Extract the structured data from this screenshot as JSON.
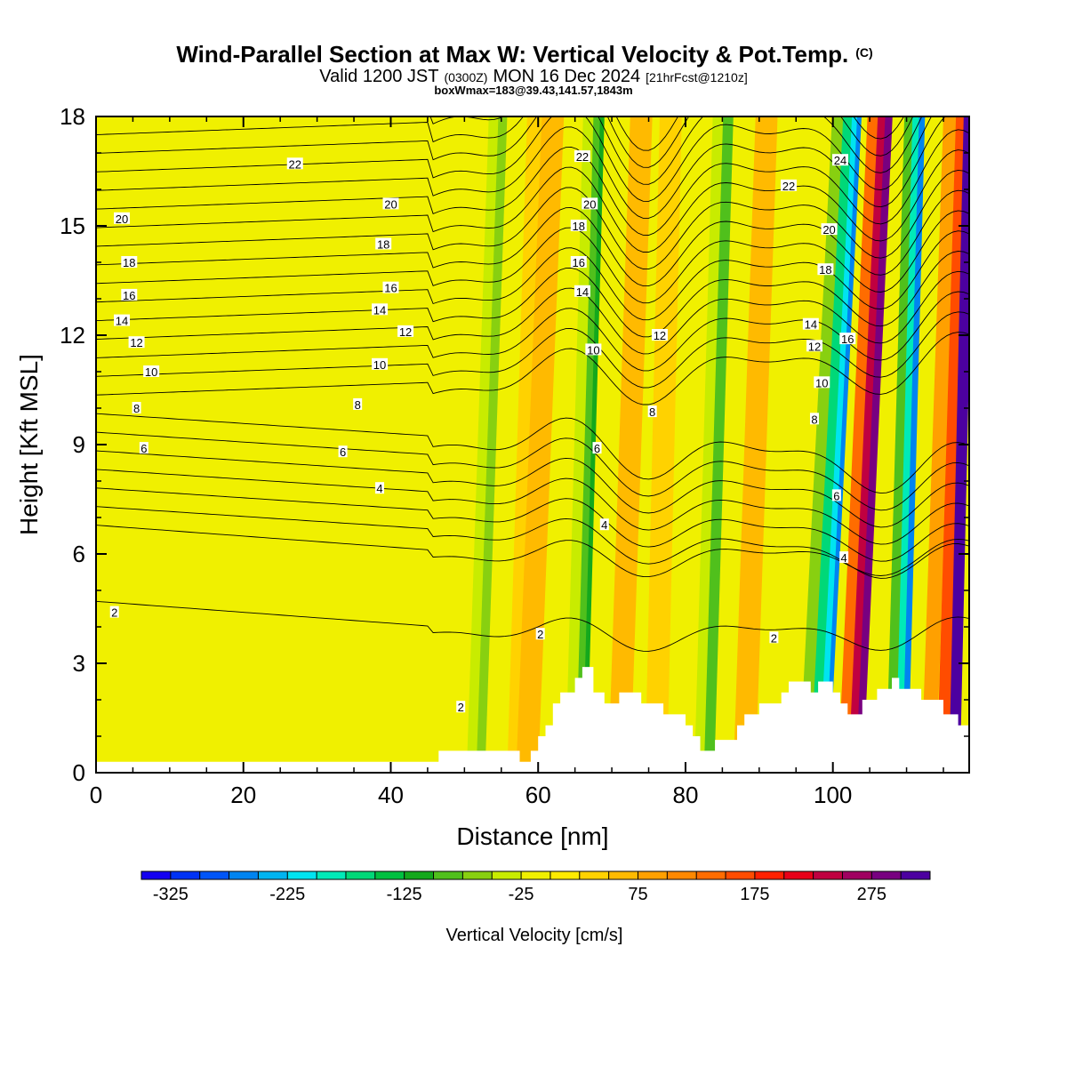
{
  "title": {
    "main": "Wind-Parallel Section at Max W: Vertical Velocity & Pot.Temp.",
    "copyright": "(C)",
    "valid_a": "Valid 1200 JST",
    "valid_b": "(0300Z)",
    "valid_c": "MON 16 Dec 2024",
    "valid_d": "[21hrFcst@1210z]",
    "boxline": "boxWmax=183@39.43,141.57,1843m"
  },
  "chart_data": {
    "type": "heatmap",
    "xlabel": "Distance [nm]",
    "ylabel": "Height [Kft MSL]",
    "xlim": [
      0,
      118.5
    ],
    "ylim": [
      0,
      18
    ],
    "x_ticks": [
      0,
      20,
      40,
      60,
      80,
      100
    ],
    "y_ticks": [
      0,
      3,
      6,
      9,
      12,
      15,
      18
    ],
    "field": "Vertical Velocity",
    "colorbar": {
      "title": "Vertical Velocity [cm/s]",
      "min": -350,
      "max": 325,
      "step": 25,
      "tick_values": [
        -325,
        -225,
        -125,
        -25,
        75,
        175,
        275
      ],
      "tick_labels": [
        "-325",
        "-225",
        "-125",
        "-25",
        "75",
        "175",
        "275"
      ],
      "colors": [
        "#1400f0",
        "#0032f5",
        "#0055f8",
        "#0084f0",
        "#00b4f0",
        "#00e4f0",
        "#00eab8",
        "#00d878",
        "#00c040",
        "#14a81c",
        "#50c01c",
        "#88d010",
        "#c8ec00",
        "#f0f000",
        "#ffea00",
        "#ffd200",
        "#ffba00",
        "#ffa000",
        "#ff8800",
        "#ff6c00",
        "#ff4c00",
        "#ff2000",
        "#e80018",
        "#c00040",
        "#a00060",
        "#780080",
        "#4c00a0"
      ]
    },
    "ridges": [
      {
        "x0": 52,
        "x1": 55,
        "w": -60,
        "level": "tall"
      },
      {
        "x0": 58,
        "x1": 61,
        "w": 40,
        "level": "tall"
      },
      {
        "x0": 66.5,
        "x1": 69,
        "w": -110,
        "level": "tall"
      },
      {
        "x0": 72,
        "x1": 76,
        "w": 70,
        "level": "tall"
      },
      {
        "x0": 84,
        "x1": 87,
        "w": -90,
        "level": "tall"
      },
      {
        "x0": 98,
        "x1": 103,
        "w": -270,
        "level": "tall"
      },
      {
        "x0": 101,
        "x1": 106,
        "w": 270,
        "level": "tall"
      },
      {
        "x0": 111,
        "x1": 114,
        "w": -290,
        "level": "tall"
      },
      {
        "x0": 116,
        "x1": 118.5,
        "w": 300,
        "level": "tall"
      }
    ],
    "terrain_kft": [
      [
        0,
        0.3
      ],
      [
        46.5,
        0.3
      ],
      [
        46.5,
        0.6
      ],
      [
        57.5,
        0.6
      ],
      [
        57.5,
        0.3
      ],
      [
        59,
        0.3
      ],
      [
        59,
        0.6
      ],
      [
        60,
        0.6
      ],
      [
        60,
        1.0
      ],
      [
        61,
        1.0
      ],
      [
        61,
        1.3
      ],
      [
        62,
        1.3
      ],
      [
        62,
        1.9
      ],
      [
        63,
        1.9
      ],
      [
        63,
        2.2
      ],
      [
        65,
        2.2
      ],
      [
        65,
        2.6
      ],
      [
        66,
        2.6
      ],
      [
        66,
        2.9
      ],
      [
        67.5,
        2.9
      ],
      [
        67.5,
        2.2
      ],
      [
        69,
        2.2
      ],
      [
        69,
        1.9
      ],
      [
        71,
        1.9
      ],
      [
        71,
        2.2
      ],
      [
        74,
        2.2
      ],
      [
        74,
        1.9
      ],
      [
        77,
        1.9
      ],
      [
        77,
        1.6
      ],
      [
        80,
        1.6
      ],
      [
        80,
        1.3
      ],
      [
        81,
        1.3
      ],
      [
        81,
        1.0
      ],
      [
        82,
        1.0
      ],
      [
        82,
        0.6
      ],
      [
        84,
        0.6
      ],
      [
        84,
        0.9
      ],
      [
        87,
        0.9
      ],
      [
        87,
        1.3
      ],
      [
        88,
        1.3
      ],
      [
        88,
        1.6
      ],
      [
        90,
        1.6
      ],
      [
        90,
        1.9
      ],
      [
        93,
        1.9
      ],
      [
        93,
        2.2
      ],
      [
        94,
        2.2
      ],
      [
        94,
        2.5
      ],
      [
        97,
        2.5
      ],
      [
        97,
        2.2
      ],
      [
        98,
        2.2
      ],
      [
        98,
        2.5
      ],
      [
        100,
        2.5
      ],
      [
        100,
        2.2
      ],
      [
        101,
        2.2
      ],
      [
        101,
        1.9
      ],
      [
        102,
        1.9
      ],
      [
        102,
        1.6
      ],
      [
        104,
        1.6
      ],
      [
        104,
        2.0
      ],
      [
        106,
        2.0
      ],
      [
        106,
        2.3
      ],
      [
        108,
        2.3
      ],
      [
        108,
        2.6
      ],
      [
        109,
        2.6
      ],
      [
        109,
        2.3
      ],
      [
        112,
        2.3
      ],
      [
        112,
        2.0
      ],
      [
        115,
        2.0
      ],
      [
        115,
        1.6
      ],
      [
        117,
        1.6
      ],
      [
        117,
        1.3
      ],
      [
        118.5,
        1.3
      ]
    ],
    "pot_temp_contour_labels": [
      {
        "x": 2.5,
        "y": 4.4,
        "t": "2"
      },
      {
        "x": 60.3,
        "y": 3.8,
        "t": "2"
      },
      {
        "x": 92,
        "y": 3.7,
        "t": "2"
      },
      {
        "x": 49.5,
        "y": 1.8,
        "t": "2"
      },
      {
        "x": 38.5,
        "y": 7.8,
        "t": "4"
      },
      {
        "x": 69,
        "y": 6.8,
        "t": "4"
      },
      {
        "x": 101.5,
        "y": 5.9,
        "t": "4"
      },
      {
        "x": 6.5,
        "y": 8.9,
        "t": "6"
      },
      {
        "x": 33.5,
        "y": 8.8,
        "t": "6"
      },
      {
        "x": 68,
        "y": 8.9,
        "t": "6"
      },
      {
        "x": 100.5,
        "y": 7.6,
        "t": "6"
      },
      {
        "x": 5.5,
        "y": 10.0,
        "t": "8"
      },
      {
        "x": 35.5,
        "y": 10.1,
        "t": "8"
      },
      {
        "x": 75.5,
        "y": 9.9,
        "t": "8"
      },
      {
        "x": 97.5,
        "y": 9.7,
        "t": "8"
      },
      {
        "x": 7.5,
        "y": 11.0,
        "t": "10"
      },
      {
        "x": 38.5,
        "y": 11.2,
        "t": "10"
      },
      {
        "x": 67.5,
        "y": 11.6,
        "t": "10"
      },
      {
        "x": 98.5,
        "y": 10.7,
        "t": "10"
      },
      {
        "x": 5.5,
        "y": 11.8,
        "t": "12"
      },
      {
        "x": 42,
        "y": 12.1,
        "t": "12"
      },
      {
        "x": 76.5,
        "y": 12.0,
        "t": "12"
      },
      {
        "x": 97.5,
        "y": 11.7,
        "t": "12"
      },
      {
        "x": 3.5,
        "y": 12.4,
        "t": "14"
      },
      {
        "x": 38.5,
        "y": 12.7,
        "t": "14"
      },
      {
        "x": 66,
        "y": 13.2,
        "t": "14"
      },
      {
        "x": 97,
        "y": 12.3,
        "t": "14"
      },
      {
        "x": 4.5,
        "y": 13.1,
        "t": "16"
      },
      {
        "x": 40,
        "y": 13.3,
        "t": "16"
      },
      {
        "x": 65.5,
        "y": 14.0,
        "t": "16"
      },
      {
        "x": 102,
        "y": 11.9,
        "t": "16"
      },
      {
        "x": 4.5,
        "y": 14.0,
        "t": "18"
      },
      {
        "x": 39,
        "y": 14.5,
        "t": "18"
      },
      {
        "x": 65.5,
        "y": 15.0,
        "t": "18"
      },
      {
        "x": 99,
        "y": 13.8,
        "t": "18"
      },
      {
        "x": 3.5,
        "y": 15.2,
        "t": "20"
      },
      {
        "x": 40,
        "y": 15.6,
        "t": "20"
      },
      {
        "x": 67,
        "y": 15.6,
        "t": "20"
      },
      {
        "x": 99.5,
        "y": 14.9,
        "t": "20"
      },
      {
        "x": 27,
        "y": 16.7,
        "t": "22"
      },
      {
        "x": 66,
        "y": 16.9,
        "t": "22"
      },
      {
        "x": 94,
        "y": 16.1,
        "t": "22"
      },
      {
        "x": 101,
        "y": 16.8,
        "t": "24"
      }
    ]
  }
}
